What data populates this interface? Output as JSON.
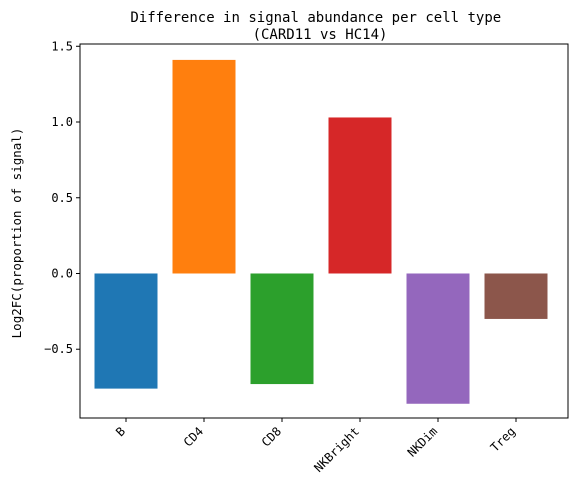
{
  "chart_data": {
    "type": "bar",
    "title": "Difference in signal abundance per cell type\n(CARD11 vs HC14)",
    "xlabel": "",
    "ylabel": "Log2FC(proportion of signal)",
    "categories": [
      "B",
      "CD4",
      "CD8",
      "NKBright",
      "NKDim",
      "Treg"
    ],
    "values": [
      -0.76,
      1.41,
      -0.73,
      1.03,
      -0.86,
      -0.3
    ],
    "colors": [
      "#1f77b4",
      "#ff7f0e",
      "#2ca02c",
      "#d62728",
      "#9467bd",
      "#8c564b"
    ],
    "yticks": [
      -0.5,
      0.0,
      0.5,
      1.0,
      1.5
    ],
    "ytick_labels": [
      "−0.5",
      "0.0",
      "0.5",
      "1.0",
      "1.5"
    ],
    "ylim": [
      -0.954,
      1.515
    ],
    "grid": false,
    "legend": "none"
  }
}
